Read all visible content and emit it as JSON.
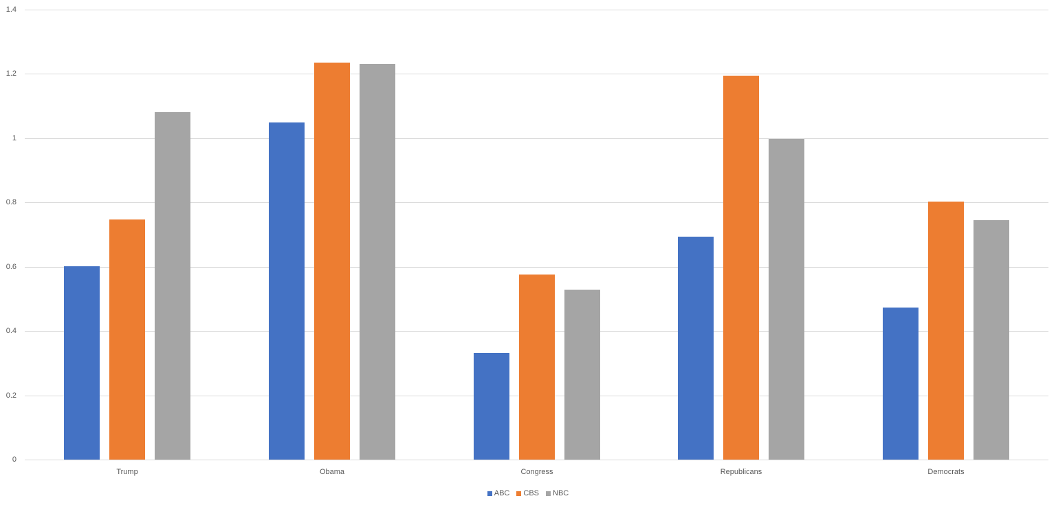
{
  "chart_data": {
    "type": "bar",
    "title": "",
    "xlabel": "",
    "ylabel": "",
    "categories": [
      "Trump",
      "Obama",
      "Congress",
      "Republicans",
      "Democrats"
    ],
    "series": [
      {
        "name": "ABC",
        "color": "#4472c4",
        "values": [
          0.602,
          1.049,
          0.331,
          0.693,
          0.473
        ]
      },
      {
        "name": "CBS",
        "color": "#ed7d31",
        "values": [
          0.747,
          1.236,
          0.575,
          1.195,
          0.802
        ]
      },
      {
        "name": "NBC",
        "color": "#a5a5a5",
        "values": [
          1.081,
          1.231,
          0.528,
          0.998,
          0.744
        ]
      }
    ],
    "ylim": [
      0,
      1.4
    ],
    "yticks": [
      "0",
      "0.2",
      "0.4",
      "0.6",
      "0.8",
      "1",
      "1.2",
      "1.4"
    ],
    "grid": true,
    "legend_position": "bottom"
  }
}
